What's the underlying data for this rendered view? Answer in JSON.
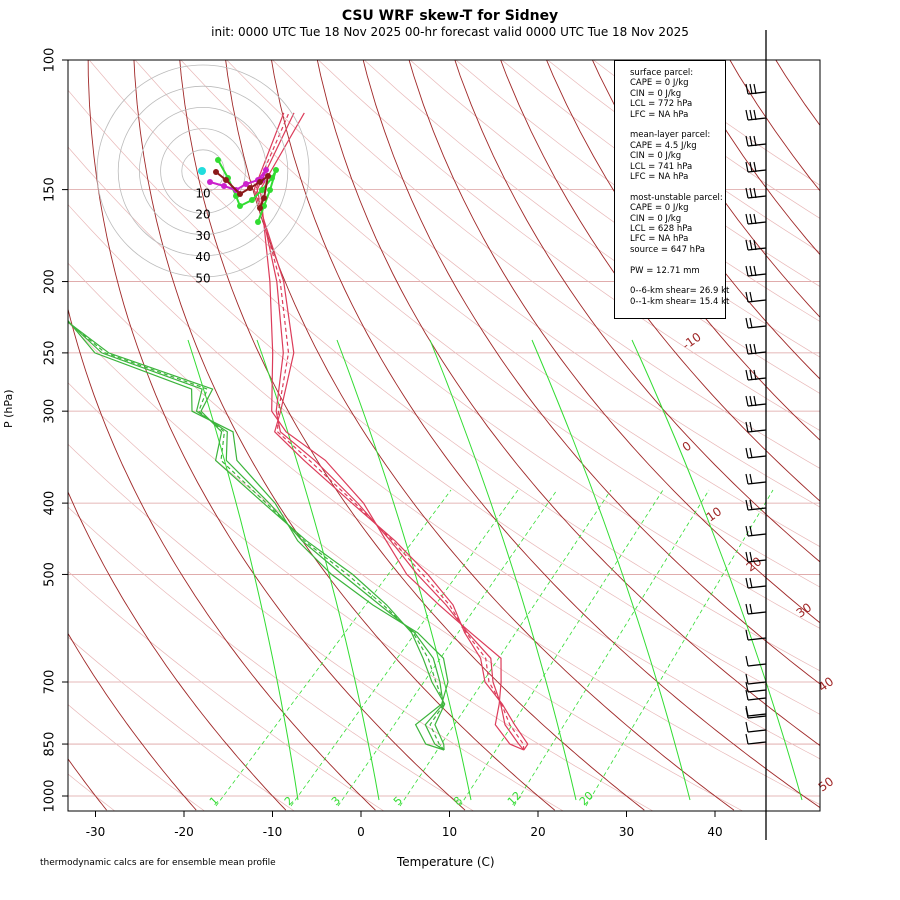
{
  "title": "CSU WRF skew-T for Sidney",
  "subtitle": "init: 0000 UTC Tue 18 Nov 2025    00-hr forecast valid 0000 UTC Tue 18 Nov 2025",
  "ylabel": "P (hPa)",
  "xlabel": "Temperature (C)",
  "footnote": "thermodynamic calcs are for ensemble mean profile",
  "legend": [
    "surface parcel:",
    "CAPE = 0 J/kg",
    "CIN = 0 J/kg",
    "LCL = 772 hPa",
    "LFC = NA hPa",
    "",
    "mean-layer parcel:",
    "CAPE = 4.5 J/kg",
    "CIN = 0 J/kg",
    "LCL = 741 hPa",
    "LFC = NA hPa",
    "",
    "most-unstable parcel:",
    "CAPE = 0 J/kg",
    "CIN = 0 J/kg",
    "LCL = 628 hPa",
    "LFC = NA hPa",
    "source = 647 hPa",
    "",
    "PW =  12.71 mm",
    "",
    "0--6-km shear= 26.9 kt",
    "0--1-km shear= 15.4 kt"
  ],
  "colors": {
    "temperature": "#dc3c5a",
    "dewpoint": "#3cb43c",
    "isotherm": "#a02828",
    "mixing_ratio": "#32dc32",
    "isobar": "#dca0a0",
    "dry_adiabat_light": "#e8b8b8"
  },
  "chart_data": {
    "type": "skew-t",
    "y_axis": {
      "scale": "log",
      "ticks": [
        100,
        150,
        200,
        250,
        300,
        400,
        500,
        700,
        850,
        1000
      ]
    },
    "x_axis": {
      "range": [
        -33,
        45
      ],
      "ticks": [
        -30,
        -20,
        -10,
        0,
        10,
        20,
        30,
        40
      ]
    },
    "isotherm_labels": [
      -10,
      0,
      10,
      20,
      30,
      40,
      50
    ],
    "mixing_ratio_labels": [
      "1",
      "2",
      "3",
      "5",
      "8",
      "12",
      "20"
    ],
    "temperature_profile": [
      {
        "p": 866,
        "t": 15.0
      },
      {
        "p": 850,
        "t": 14.0
      },
      {
        "p": 800,
        "t": 11.0
      },
      {
        "p": 750,
        "t": 9.0
      },
      {
        "p": 700,
        "t": 6.5
      },
      {
        "p": 650,
        "t": 4.5
      },
      {
        "p": 600,
        "t": 0.0
      },
      {
        "p": 550,
        "t": -4.5
      },
      {
        "p": 500,
        "t": -10.0
      },
      {
        "p": 450,
        "t": -15.5
      },
      {
        "p": 400,
        "t": -22.0
      },
      {
        "p": 350,
        "t": -30.0
      },
      {
        "p": 320,
        "t": -36.0
      },
      {
        "p": 300,
        "t": -38.0
      },
      {
        "p": 250,
        "t": -41.5
      },
      {
        "p": 200,
        "t": -47.5
      },
      {
        "p": 150,
        "t": -56.5
      },
      {
        "p": 118,
        "t": -58.0
      }
    ],
    "dewpoint_profile": [
      {
        "p": 866,
        "t": 6.0
      },
      {
        "p": 850,
        "t": 4.5
      },
      {
        "p": 800,
        "t": 2.0
      },
      {
        "p": 750,
        "t": 2.5
      },
      {
        "p": 700,
        "t": 0.5
      },
      {
        "p": 650,
        "t": -2.0
      },
      {
        "p": 600,
        "t": -6.0
      },
      {
        "p": 550,
        "t": -12.0
      },
      {
        "p": 500,
        "t": -18.5
      },
      {
        "p": 450,
        "t": -25.5
      },
      {
        "p": 400,
        "t": -32.0
      },
      {
        "p": 350,
        "t": -40.0
      },
      {
        "p": 320,
        "t": -42.0
      },
      {
        "p": 300,
        "t": -47.0
      },
      {
        "p": 280,
        "t": -48.0
      },
      {
        "p": 250,
        "t": -62.0
      },
      {
        "p": 220,
        "t": -70.0
      },
      {
        "p": 205,
        "t": -74.0
      }
    ],
    "hodograph_rings_kt": [
      10,
      20,
      30,
      40,
      50
    ],
    "wind_barb_speeds_kt": [
      25,
      25,
      25,
      25,
      25,
      25,
      25,
      25,
      20,
      20,
      25,
      25,
      25,
      20,
      20,
      20,
      15,
      15,
      15,
      15,
      15,
      10,
      10,
      10,
      10,
      10,
      10,
      10,
      5,
      5
    ]
  }
}
